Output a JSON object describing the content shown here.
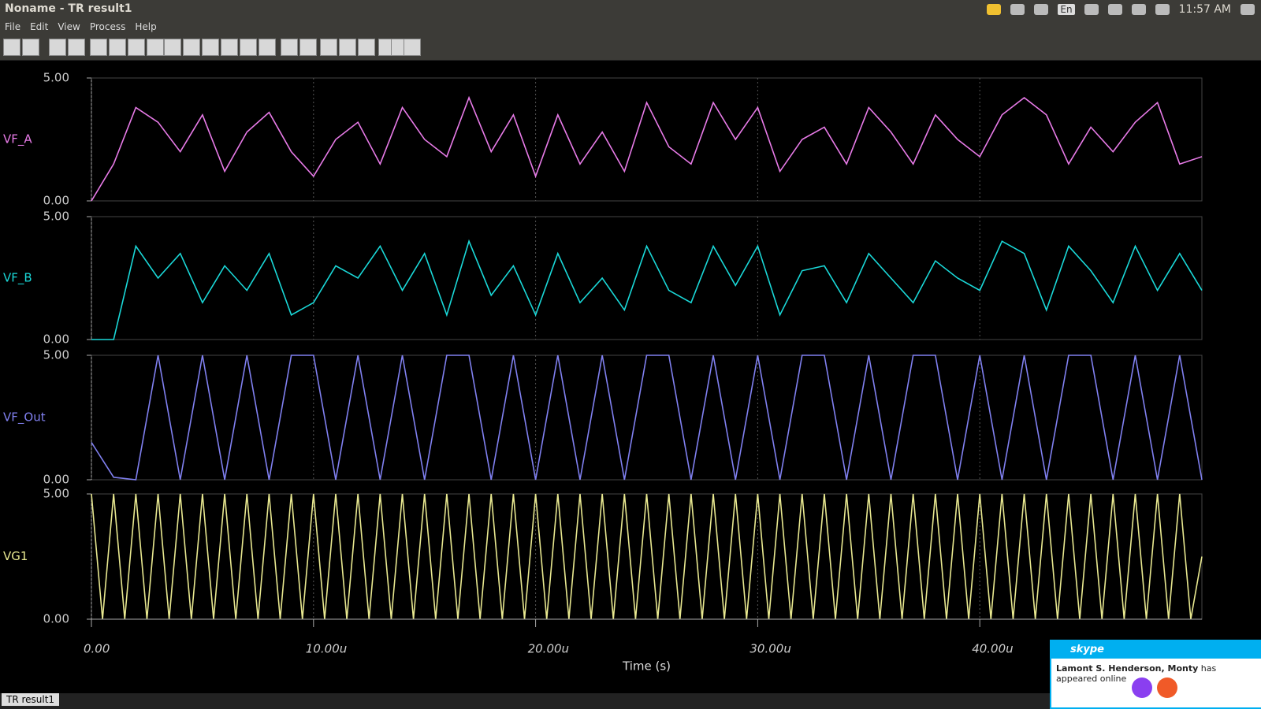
{
  "window": {
    "title": "Noname - TR result1",
    "menu": [
      "File",
      "Edit",
      "View",
      "Process",
      "Help"
    ],
    "tray": {
      "keyboard": "En",
      "clock": "11:57 AM"
    },
    "tab": "TR result1"
  },
  "notification": {
    "app": "skype",
    "name": "Lamont S. Henderson, Monty",
    "message": "has appeared online"
  },
  "chart_data": [
    {
      "type": "line",
      "ylabel": "VF_A",
      "color": "#e87be8",
      "xlim": [
        0,
        50
      ],
      "ylim": [
        0,
        5
      ],
      "yticks": [
        {
          "value": 0,
          "label": "0.00"
        },
        {
          "value": 5,
          "label": "5.00"
        }
      ],
      "grid": true,
      "x": [
        0,
        1,
        2,
        3,
        4,
        5,
        6,
        7,
        8,
        9,
        10,
        11,
        12,
        13,
        14,
        15,
        16,
        17,
        18,
        19,
        20,
        21,
        22,
        23,
        24,
        25,
        26,
        27,
        28,
        29,
        30,
        31,
        32,
        33,
        34,
        35,
        36,
        37,
        38,
        39,
        40,
        41,
        42,
        43,
        44,
        45,
        46,
        47,
        48,
        49,
        50
      ],
      "values": [
        0,
        1.5,
        3.8,
        3.2,
        2,
        3.5,
        1.2,
        2.8,
        3.6,
        2,
        1,
        2.5,
        3.2,
        1.5,
        3.8,
        2.5,
        1.8,
        4.2,
        2,
        3.5,
        1,
        3.5,
        1.5,
        2.8,
        1.2,
        4,
        2.2,
        1.5,
        4,
        2.5,
        3.8,
        1.2,
        2.5,
        3,
        1.5,
        3.8,
        2.8,
        1.5,
        3.5,
        2.5,
        1.8,
        3.5,
        4.2,
        3.5,
        1.5,
        3,
        2,
        3.2,
        4,
        1.5,
        1.8
      ]
    },
    {
      "type": "line",
      "ylabel": "VF_B",
      "color": "#1ad8d8",
      "xlim": [
        0,
        50
      ],
      "ylim": [
        0,
        5
      ],
      "yticks": [
        {
          "value": 0,
          "label": "0.00"
        },
        {
          "value": 5,
          "label": "5.00"
        }
      ],
      "grid": true,
      "x": [
        0,
        1,
        2,
        3,
        4,
        5,
        6,
        7,
        8,
        9,
        10,
        11,
        12,
        13,
        14,
        15,
        16,
        17,
        18,
        19,
        20,
        21,
        22,
        23,
        24,
        25,
        26,
        27,
        28,
        29,
        30,
        31,
        32,
        33,
        34,
        35,
        36,
        37,
        38,
        39,
        40,
        41,
        42,
        43,
        44,
        45,
        46,
        47,
        48,
        49,
        50
      ],
      "values": [
        0,
        0,
        3.8,
        2.5,
        3.5,
        1.5,
        3,
        2,
        3.5,
        1,
        1.5,
        3,
        2.5,
        3.8,
        2,
        3.5,
        1,
        4,
        1.8,
        3,
        1,
        3.5,
        1.5,
        2.5,
        1.2,
        3.8,
        2,
        1.5,
        3.8,
        2.2,
        3.8,
        1,
        2.8,
        3,
        1.5,
        3.5,
        2.5,
        1.5,
        3.2,
        2.5,
        2,
        4,
        3.5,
        1.2,
        3.8,
        2.8,
        1.5,
        3.8,
        2,
        3.5,
        2
      ]
    },
    {
      "type": "line",
      "ylabel": "VF_Out",
      "color": "#8080f0",
      "xlim": [
        0,
        50
      ],
      "ylim": [
        0,
        5
      ],
      "yticks": [
        {
          "value": 0,
          "label": "0.00"
        },
        {
          "value": 5,
          "label": "5.00"
        }
      ],
      "grid": true,
      "x": [
        0,
        1,
        2,
        3,
        4,
        5,
        6,
        7,
        8,
        9,
        10,
        11,
        12,
        13,
        14,
        15,
        16,
        17,
        18,
        19,
        20,
        21,
        22,
        23,
        24,
        25,
        26,
        27,
        28,
        29,
        30,
        31,
        32,
        33,
        34,
        35,
        36,
        37,
        38,
        39,
        40,
        41,
        42,
        43,
        44,
        45,
        46,
        47,
        48,
        49,
        50
      ],
      "values": [
        1.5,
        0.1,
        0,
        5,
        0,
        5,
        0,
        5,
        0,
        5,
        5,
        0,
        5,
        0,
        5,
        0,
        5,
        5,
        0,
        5,
        0,
        5,
        0,
        5,
        0,
        5,
        5,
        0,
        5,
        0,
        5,
        0,
        5,
        5,
        0,
        5,
        0,
        5,
        5,
        0,
        5,
        0,
        5,
        0,
        5,
        5,
        0,
        5,
        0,
        5,
        0
      ]
    },
    {
      "type": "line",
      "ylabel": "VG1",
      "color": "#e8e890",
      "xlim": [
        0,
        50
      ],
      "ylim": [
        0,
        5
      ],
      "yticks": [
        {
          "value": 0,
          "label": "0.00"
        },
        {
          "value": 5,
          "label": "5.00"
        }
      ],
      "grid": true,
      "xlabel": "Time (s)",
      "xticks": [
        {
          "value": 0,
          "label": "0.00"
        },
        {
          "value": 10,
          "label": "10.00u"
        },
        {
          "value": 20,
          "label": "20.00u"
        },
        {
          "value": 30,
          "label": "30.00u"
        },
        {
          "value": 40,
          "label": "40.00u"
        }
      ],
      "x": [
        0,
        0.5,
        1,
        1.5,
        2,
        2.5,
        3,
        3.5,
        4,
        4.5,
        5,
        5.5,
        6,
        6.5,
        7,
        7.5,
        8,
        8.5,
        9,
        9.5,
        10,
        10.5,
        11,
        11.5,
        12,
        12.5,
        13,
        13.5,
        14,
        14.5,
        15,
        15.5,
        16,
        16.5,
        17,
        17.5,
        18,
        18.5,
        19,
        19.5,
        20,
        20.5,
        21,
        21.5,
        22,
        22.5,
        23,
        23.5,
        24,
        24.5,
        25,
        25.5,
        26,
        26.5,
        27,
        27.5,
        28,
        28.5,
        29,
        29.5,
        30,
        30.5,
        31,
        31.5,
        32,
        32.5,
        33,
        33.5,
        34,
        34.5,
        35,
        35.5,
        36,
        36.5,
        37,
        37.5,
        38,
        38.5,
        39,
        39.5,
        40,
        40.5,
        41,
        41.5,
        42,
        42.5,
        43,
        43.5,
        44,
        44.5,
        45,
        45.5,
        46,
        46.5,
        47,
        47.5,
        48,
        48.5,
        49,
        49.5,
        50
      ],
      "values": [
        5,
        0,
        5,
        0,
        5,
        0,
        5,
        0,
        5,
        0,
        5,
        0,
        5,
        0,
        5,
        0,
        5,
        0,
        5,
        0,
        5,
        0,
        5,
        0,
        5,
        0,
        5,
        0,
        5,
        0,
        5,
        0,
        5,
        0,
        5,
        0,
        5,
        0,
        5,
        0,
        5,
        0,
        5,
        0,
        5,
        0,
        5,
        0,
        5,
        0,
        5,
        0,
        5,
        0,
        5,
        0,
        5,
        0,
        5,
        0,
        5,
        0,
        5,
        0,
        5,
        0,
        5,
        0,
        5,
        0,
        5,
        0,
        5,
        0,
        5,
        0,
        5,
        0,
        5,
        0,
        5,
        0,
        5,
        0,
        5,
        0,
        5,
        0,
        5,
        0,
        5,
        0,
        5,
        0,
        5,
        0,
        5,
        0,
        5,
        0,
        2.5
      ]
    }
  ]
}
